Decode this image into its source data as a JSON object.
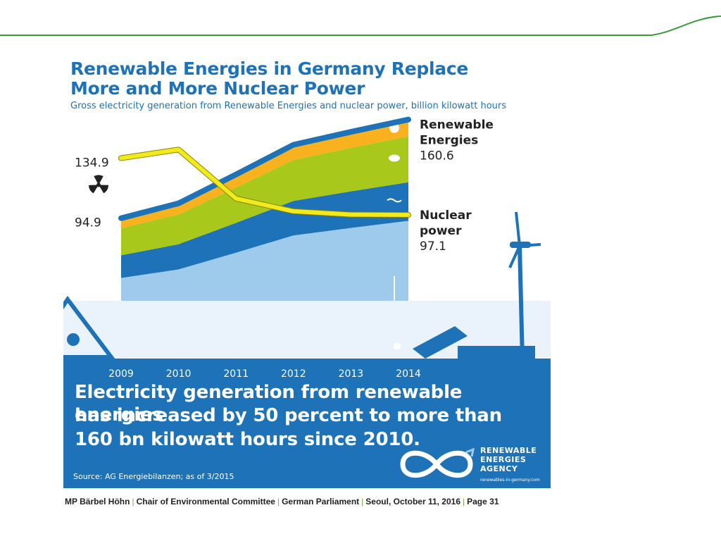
{
  "colors": {
    "green_line": "#3a9b3a",
    "blue": "#1d72b8",
    "orange": "#f9b21d",
    "lime": "#a8c81c",
    "light_blue": "#9ecbec",
    "nuclear": "#f2ea1a"
  },
  "chart_data": {
    "type": "area",
    "title": "Renewable Energies in Germany Replace More and More Nuclear Power",
    "title_lines": [
      "Renewable Energies in Germany Replace",
      "More and More Nuclear Power"
    ],
    "subtitle": "Gross electricity generation from Renewable Energies and nuclear power, billion kilowatt hours",
    "x": [
      "2009",
      "2010",
      "2011",
      "2012",
      "2013",
      "2014"
    ],
    "series": [
      {
        "name": "Renewable Energies",
        "values": [
          94.9,
          104.8,
          124.0,
          143.8,
          152.4,
          160.6
        ],
        "label_lines": [
          "Renewable",
          "Energies"
        ],
        "end_label": "160.6",
        "start_label": "94.9"
      },
      {
        "name": "Nuclear power",
        "values": [
          134.9,
          140.6,
          108.0,
          99.5,
          97.3,
          97.1
        ],
        "label_lines": [
          "Nuclear",
          "power"
        ],
        "end_label": "97.1",
        "start_label": "134.9"
      }
    ],
    "ylim": [
      0,
      175
    ],
    "legend_position": "right"
  },
  "headline_lines": [
    "Electricity generation from renewable energies",
    "has increased by 50 percent to more than",
    "160 bn kilowatt hours since 2010."
  ],
  "source": "Source: AG Energiebilanzen; as of 3/2015",
  "agency": {
    "lines": [
      "RENEWABLE",
      "ENERGIES",
      "AGENCY"
    ],
    "url": "renewables-in-germany.com"
  },
  "footer": {
    "parts": [
      "MP Bärbel Höhn",
      "Chair of Environmental Committee",
      "German Parliament",
      "Seoul, October 11, 2016",
      "Page 31"
    ]
  }
}
